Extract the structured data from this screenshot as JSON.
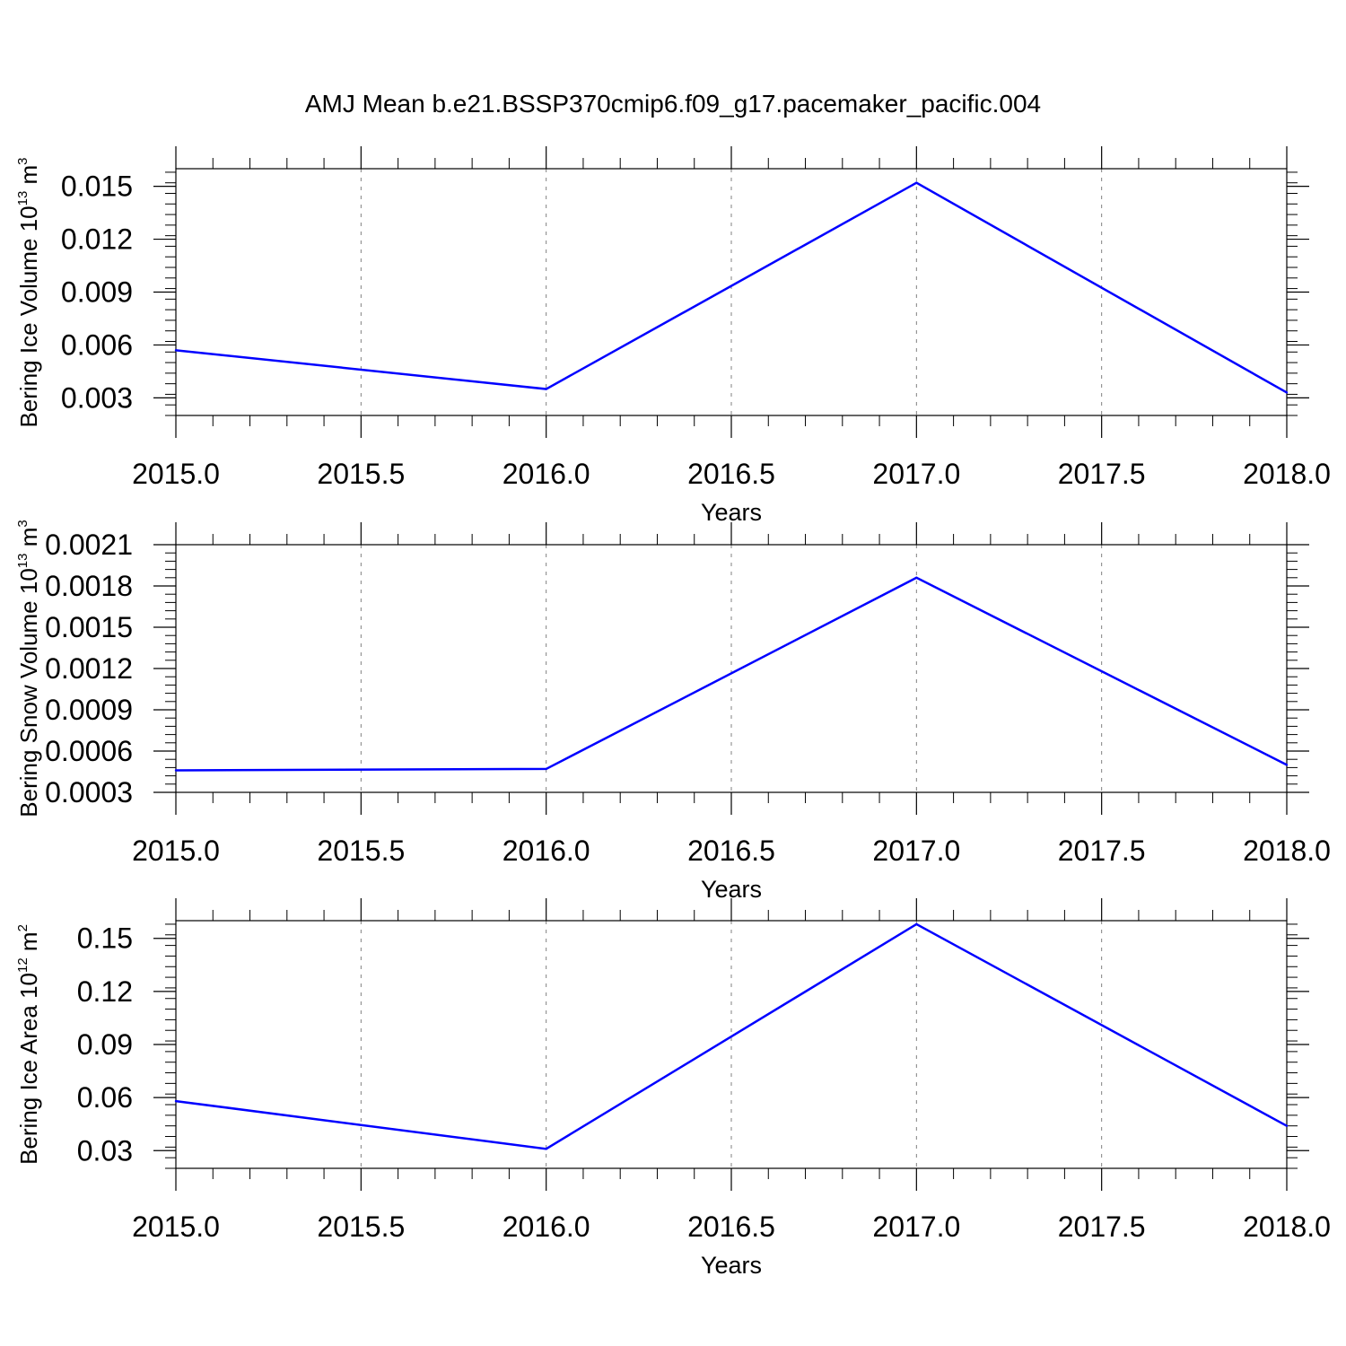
{
  "title": "AMJ Mean b.e21.BSSP370cmip6.f09_g17.pacemaker_pacific.004",
  "colors": {
    "line": "#0000ff",
    "axis": "#000000",
    "grid": "#808080",
    "background": "#ffffff"
  },
  "chart_data": [
    {
      "type": "line",
      "x": [
        2015,
        2016,
        2017,
        2018
      ],
      "series": [
        {
          "values": [
            0.0057,
            0.0035,
            0.0152,
            0.0033
          ]
        }
      ],
      "xlabel": "Years",
      "ylabel": {
        "text": "Bering Ice Volume 10",
        "sup": "13",
        "unit": "m",
        "unit_sup": "3"
      },
      "xlim": [
        2015,
        2018
      ],
      "ylim": [
        0.002,
        0.016
      ],
      "xticks": [
        2015,
        2015.5,
        2016,
        2016.5,
        2017,
        2017.5,
        2018
      ],
      "xtick_labels": [
        "2015.0",
        "2015.5",
        "2016.0",
        "2016.5",
        "2017.0",
        "2017.5",
        "2018.0"
      ],
      "yticks": [
        0.003,
        0.006,
        0.009,
        0.012,
        0.015
      ],
      "ytick_labels": [
        "0.003",
        "0.006",
        "0.009",
        "0.012",
        "0.015"
      ],
      "x_grid": "dashed vertical at major ticks"
    },
    {
      "type": "line",
      "x": [
        2015,
        2016,
        2017,
        2018
      ],
      "series": [
        {
          "values": [
            0.00046,
            0.00047,
            0.00186,
            0.0005
          ]
        }
      ],
      "xlabel": "Years",
      "ylabel": {
        "text": "Bering Snow Volume 10",
        "sup": "13",
        "unit": "m",
        "unit_sup": "3"
      },
      "xlim": [
        2015,
        2018
      ],
      "ylim": [
        0.0003,
        0.0021
      ],
      "xticks": [
        2015,
        2015.5,
        2016,
        2016.5,
        2017,
        2017.5,
        2018
      ],
      "xtick_labels": [
        "2015.0",
        "2015.5",
        "2016.0",
        "2016.5",
        "2017.0",
        "2017.5",
        "2018.0"
      ],
      "yticks": [
        0.0003,
        0.0006,
        0.0009,
        0.0012,
        0.0015,
        0.0018,
        0.0021
      ],
      "ytick_labels": [
        "0.0003",
        "0.0006",
        "0.0009",
        "0.0012",
        "0.0015",
        "0.0018",
        "0.0021"
      ],
      "x_grid": "dashed vertical at major ticks"
    },
    {
      "type": "line",
      "x": [
        2015,
        2016,
        2017,
        2018
      ],
      "series": [
        {
          "values": [
            0.058,
            0.031,
            0.158,
            0.044
          ]
        }
      ],
      "xlabel": "Years",
      "ylabel": {
        "text": "Bering Ice Area 10",
        "sup": "12",
        "unit": "m",
        "unit_sup": "2"
      },
      "xlim": [
        2015,
        2018
      ],
      "ylim": [
        0.02,
        0.16
      ],
      "xticks": [
        2015,
        2015.5,
        2016,
        2016.5,
        2017,
        2017.5,
        2018
      ],
      "xtick_labels": [
        "2015.0",
        "2015.5",
        "2016.0",
        "2016.5",
        "2017.0",
        "2017.5",
        "2018.0"
      ],
      "yticks": [
        0.03,
        0.06,
        0.09,
        0.12,
        0.15
      ],
      "ytick_labels": [
        "0.03",
        "0.06",
        "0.09",
        "0.12",
        "0.15"
      ],
      "x_grid": "dashed vertical at major ticks"
    }
  ]
}
